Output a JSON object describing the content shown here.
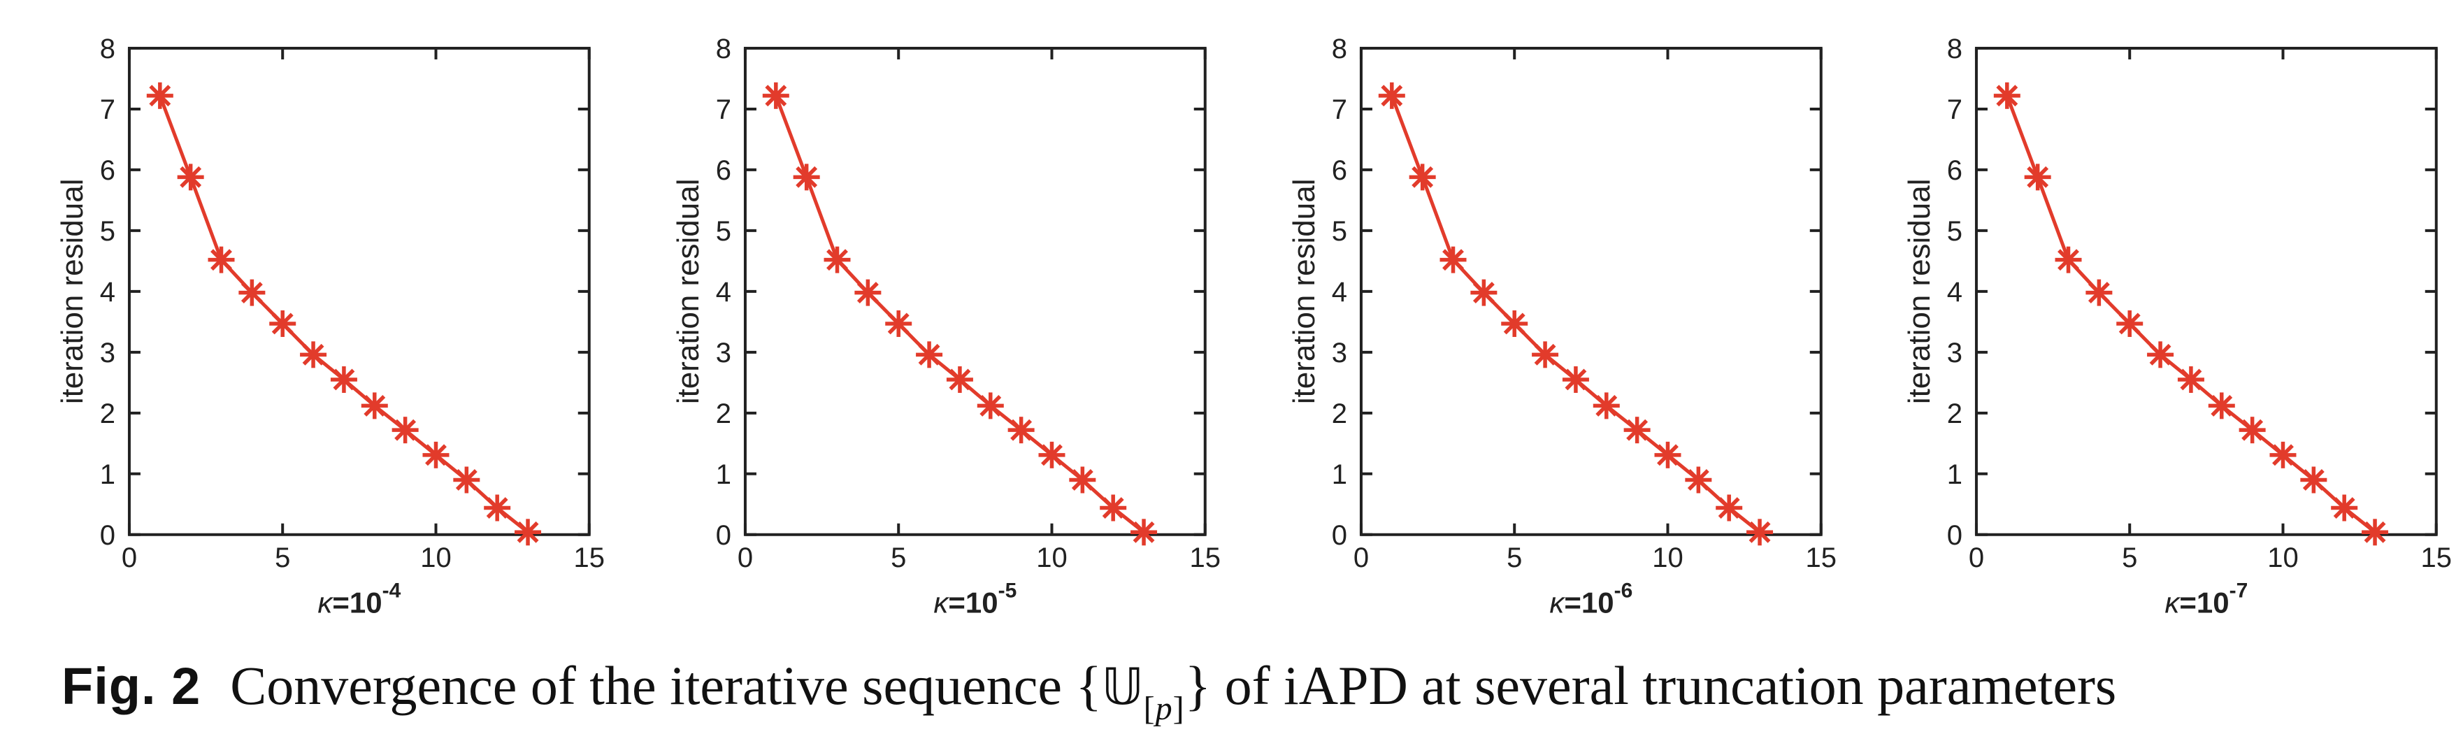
{
  "figure": {
    "caption": {
      "label": "Fig. 2",
      "text_before": "Convergence of the iterative sequence ",
      "math": {
        "open_brace": "{",
        "symbol": "𝕌",
        "sub_open": "[",
        "sub_italic": "p",
        "sub_close": "]",
        "close_brace": "}"
      },
      "text_after": " of iAPD at several truncation parameters"
    }
  },
  "chart_data": [
    {
      "type": "line",
      "title": "",
      "xlabel": "κ=10^-4",
      "xlabel_kappa": "κ",
      "xlabel_mid": "=10",
      "xlabel_exp": "-4",
      "ylabel": "iteration residual",
      "x": [
        1,
        2,
        3,
        4,
        5,
        6,
        7,
        8,
        9,
        10,
        11,
        12,
        13
      ],
      "y": [
        7.22,
        5.88,
        4.52,
        3.98,
        3.47,
        2.96,
        2.55,
        2.12,
        1.72,
        1.31,
        0.9,
        0.44,
        0.04
      ],
      "xlim": [
        0,
        15
      ],
      "ylim": [
        0,
        8
      ],
      "xticks": [
        0,
        5,
        10,
        15
      ],
      "yticks": [
        0,
        1,
        2,
        3,
        4,
        5,
        6,
        7,
        8
      ],
      "grid": false,
      "legend": null,
      "marker": "asterisk",
      "line_color": "#e23b2b",
      "axis_color": "#212121"
    },
    {
      "type": "line",
      "title": "",
      "xlabel": "κ=10^-5",
      "xlabel_kappa": "κ",
      "xlabel_mid": "=10",
      "xlabel_exp": "-5",
      "ylabel": "iteration residual",
      "x": [
        1,
        2,
        3,
        4,
        5,
        6,
        7,
        8,
        9,
        10,
        11,
        12,
        13
      ],
      "y": [
        7.22,
        5.88,
        4.52,
        3.98,
        3.47,
        2.96,
        2.55,
        2.12,
        1.72,
        1.31,
        0.9,
        0.44,
        0.04
      ],
      "xlim": [
        0,
        15
      ],
      "ylim": [
        0,
        8
      ],
      "xticks": [
        0,
        5,
        10,
        15
      ],
      "yticks": [
        0,
        1,
        2,
        3,
        4,
        5,
        6,
        7,
        8
      ],
      "grid": false,
      "legend": null,
      "marker": "asterisk",
      "line_color": "#e23b2b",
      "axis_color": "#212121"
    },
    {
      "type": "line",
      "title": "",
      "xlabel": "κ=10^-6",
      "xlabel_kappa": "κ",
      "xlabel_mid": "=10",
      "xlabel_exp": "-6",
      "ylabel": "iteration residual",
      "x": [
        1,
        2,
        3,
        4,
        5,
        6,
        7,
        8,
        9,
        10,
        11,
        12,
        13
      ],
      "y": [
        7.22,
        5.88,
        4.52,
        3.98,
        3.47,
        2.96,
        2.55,
        2.12,
        1.72,
        1.31,
        0.9,
        0.44,
        0.04
      ],
      "xlim": [
        0,
        15
      ],
      "ylim": [
        0,
        8
      ],
      "xticks": [
        0,
        5,
        10,
        15
      ],
      "yticks": [
        0,
        1,
        2,
        3,
        4,
        5,
        6,
        7,
        8
      ],
      "grid": false,
      "legend": null,
      "marker": "asterisk",
      "line_color": "#e23b2b",
      "axis_color": "#212121"
    },
    {
      "type": "line",
      "title": "",
      "xlabel": "κ=10^-7",
      "xlabel_kappa": "κ",
      "xlabel_mid": "=10",
      "xlabel_exp": "-7",
      "ylabel": "iteration residual",
      "x": [
        1,
        2,
        3,
        4,
        5,
        6,
        7,
        8,
        9,
        10,
        11,
        12,
        13
      ],
      "y": [
        7.22,
        5.88,
        4.52,
        3.98,
        3.47,
        2.96,
        2.55,
        2.12,
        1.72,
        1.31,
        0.9,
        0.44,
        0.04
      ],
      "xlim": [
        0,
        15
      ],
      "ylim": [
        0,
        8
      ],
      "xticks": [
        0,
        5,
        10,
        15
      ],
      "yticks": [
        0,
        1,
        2,
        3,
        4,
        5,
        6,
        7,
        8
      ],
      "grid": false,
      "legend": null,
      "marker": "asterisk",
      "line_color": "#e23b2b",
      "axis_color": "#212121"
    }
  ]
}
